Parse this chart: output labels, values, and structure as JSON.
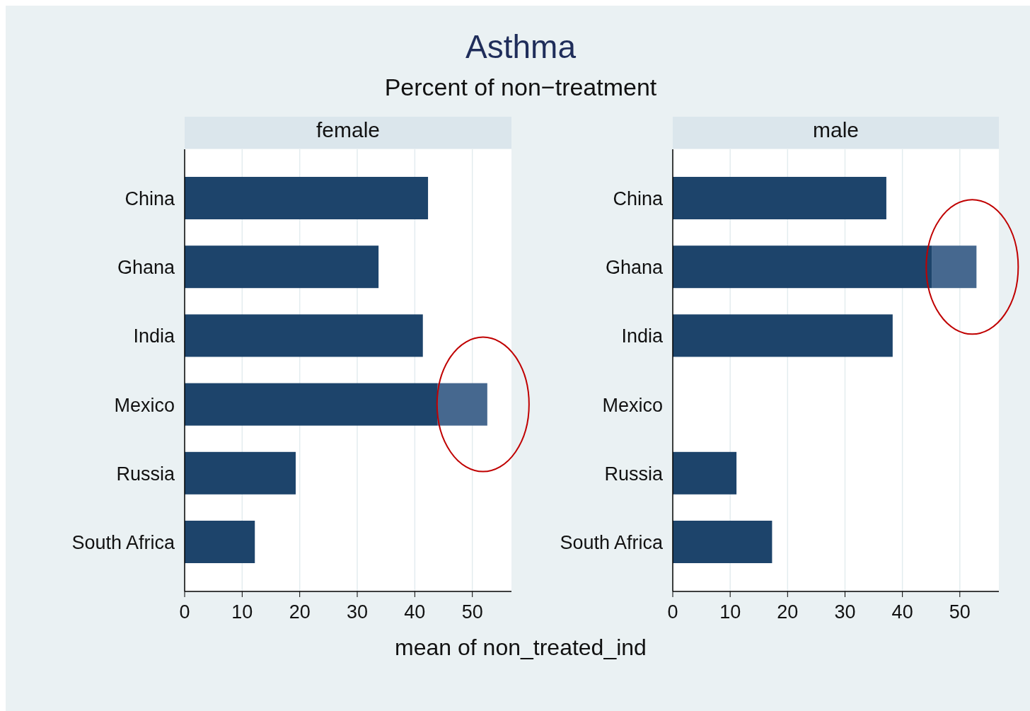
{
  "chart_data": [
    {
      "type": "bar",
      "title": "female",
      "annotations": [
        "Asthma",
        "Percent of non−treatment"
      ],
      "xlabel": "mean of non_treated_ind",
      "orientation": "horizontal",
      "stacked": true,
      "grid": "x",
      "categories": [
        "China",
        "Ghana",
        "India",
        "Mexico",
        "Russia",
        "South Africa"
      ],
      "xlim": [
        0,
        56.8
      ],
      "xticks": [
        0,
        10,
        20,
        30,
        40,
        50
      ],
      "series": [
        {
          "color": "#1d446b",
          "values": [
            42.3,
            33.7,
            41.4,
            43.9,
            19.3,
            12.2
          ]
        },
        {
          "color": "#46688f",
          "values": [
            null,
            null,
            null,
            8.7,
            null,
            null
          ]
        }
      ]
    },
    {
      "type": "bar",
      "title": "male",
      "orientation": "horizontal",
      "stacked": true,
      "grid": "x",
      "categories": [
        "China",
        "Ghana",
        "India",
        "Mexico",
        "Russia",
        "South Africa"
      ],
      "xlim": [
        0,
        56.8
      ],
      "xticks": [
        0,
        10,
        20,
        30,
        40,
        50
      ],
      "series": [
        {
          "color": "#1d446b",
          "values": [
            37.2,
            45.1,
            38.3,
            null,
            11.1,
            17.3
          ]
        },
        {
          "color": "#46688f",
          "values": [
            null,
            7.8,
            null,
            null,
            null,
            null
          ]
        }
      ]
    }
  ]
}
